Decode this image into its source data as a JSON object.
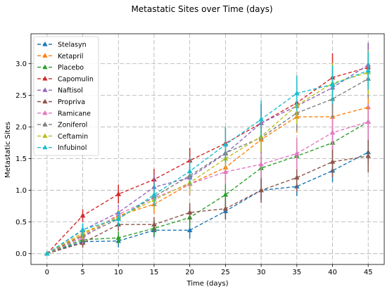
{
  "chart_data": {
    "type": "line",
    "title": "Metastatic Sites over Time (days)",
    "xlabel": "Time (days)",
    "ylabel": "Metastatic Sites",
    "x": [
      0,
      5,
      10,
      15,
      20,
      25,
      30,
      35,
      40,
      45
    ],
    "xticks": [
      "0",
      "5",
      "10",
      "15",
      "20",
      "25",
      "30",
      "35",
      "40",
      "45"
    ],
    "yticks": [
      "0.0",
      "0.5",
      "1.0",
      "1.5",
      "2.0",
      "2.5",
      "3.0"
    ],
    "xlim": [
      -2.25,
      47.25
    ],
    "ylim": [
      -0.17,
      3.47
    ],
    "grid": true,
    "legend_position": "upper-left",
    "series": [
      {
        "name": "Stelasyn",
        "color": "#1f77b4",
        "marker": "triangle",
        "values": [
          0,
          0.19,
          0.2,
          0.37,
          0.37,
          0.67,
          1.0,
          1.06,
          1.31,
          1.6
        ],
        "errors": [
          0,
          0.07,
          0.1,
          0.11,
          0.13,
          0.13,
          0.15,
          0.15,
          0.18,
          0.18
        ]
      },
      {
        "name": "Ketapril",
        "color": "#ff7f0e",
        "marker": "triangle",
        "values": [
          0,
          0.3,
          0.6,
          0.78,
          1.1,
          1.36,
          1.8,
          2.16,
          2.16,
          2.31
        ],
        "errors": [
          0,
          0.1,
          0.12,
          0.15,
          0.18,
          0.2,
          0.22,
          0.25,
          0.25,
          0.28
        ]
      },
      {
        "name": "Placebo",
        "color": "#2ca02c",
        "marker": "triangle",
        "values": [
          0,
          0.22,
          0.25,
          0.4,
          0.57,
          0.93,
          1.35,
          1.54,
          1.75,
          2.08
        ],
        "errors": [
          0,
          0.1,
          0.1,
          0.12,
          0.15,
          0.18,
          0.2,
          0.22,
          0.24,
          0.26
        ]
      },
      {
        "name": "Capomulin",
        "color": "#d62728",
        "marker": "triangle",
        "values": [
          0,
          0.6,
          0.94,
          1.17,
          1.47,
          1.74,
          2.06,
          2.38,
          2.78,
          2.94
        ],
        "errors": [
          0,
          0.1,
          0.15,
          0.17,
          0.2,
          0.25,
          0.3,
          0.33,
          0.38,
          0.38
        ]
      },
      {
        "name": "Naftisol",
        "color": "#9467bd",
        "marker": "triangle",
        "values": [
          0,
          0.37,
          0.65,
          1.05,
          1.2,
          1.58,
          2.06,
          2.33,
          2.62,
          2.98
        ],
        "errors": [
          0,
          0.1,
          0.12,
          0.2,
          0.2,
          0.25,
          0.3,
          0.35,
          0.3,
          0.35
        ]
      },
      {
        "name": "Propriva",
        "color": "#8c564b",
        "marker": "triangle",
        "values": [
          0,
          0.17,
          0.46,
          0.46,
          0.65,
          0.71,
          1.0,
          1.2,
          1.45,
          1.54
        ],
        "errors": [
          0,
          0.08,
          0.1,
          0.12,
          0.15,
          0.17,
          0.2,
          0.22,
          0.24,
          0.26
        ]
      },
      {
        "name": "Ramicane",
        "color": "#e377c2",
        "marker": "triangle",
        "values": [
          0,
          0.25,
          0.62,
          0.88,
          1.1,
          1.29,
          1.41,
          1.58,
          1.91,
          2.08
        ],
        "errors": [
          0,
          0.1,
          0.12,
          0.15,
          0.18,
          0.2,
          0.22,
          0.25,
          0.27,
          0.28
        ]
      },
      {
        "name": "Zoniferol",
        "color": "#7f7f7f",
        "marker": "triangle",
        "values": [
          0,
          0.28,
          0.55,
          0.9,
          1.23,
          1.59,
          1.83,
          2.22,
          2.44,
          2.76
        ],
        "errors": [
          0,
          0.1,
          0.12,
          0.15,
          0.2,
          0.22,
          0.25,
          0.28,
          0.3,
          0.3
        ]
      },
      {
        "name": "Ceftamin",
        "color": "#bcbd22",
        "marker": "triangle",
        "values": [
          0,
          0.33,
          0.57,
          0.85,
          1.12,
          1.5,
          1.85,
          2.34,
          2.69,
          2.86
        ],
        "errors": [
          0,
          0.1,
          0.12,
          0.15,
          0.18,
          0.2,
          0.25,
          0.3,
          0.32,
          0.35
        ]
      },
      {
        "name": "Infubinol",
        "color": "#17becf",
        "marker": "triangle",
        "values": [
          0,
          0.38,
          0.55,
          0.93,
          1.3,
          1.72,
          2.12,
          2.53,
          2.67,
          2.89
        ],
        "errors": [
          0,
          0.1,
          0.12,
          0.18,
          0.22,
          0.28,
          0.3,
          0.28,
          0.3,
          0.3
        ]
      }
    ]
  }
}
